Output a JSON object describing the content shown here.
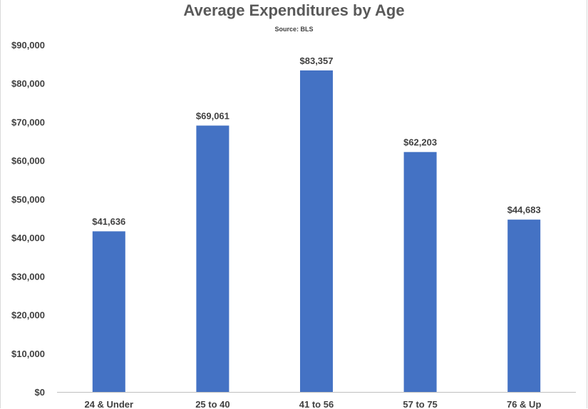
{
  "chart_data": {
    "type": "bar",
    "title": "Average Expenditures by Age",
    "subtitle": "Source: BLS",
    "categories": [
      "24 & Under",
      "25 to 40",
      "41 to 56",
      "57 to 75",
      "76 & Up"
    ],
    "values": [
      41636,
      69061,
      83357,
      62203,
      44683
    ],
    "data_labels": [
      "$41,636",
      "$69,061",
      "$83,357",
      "$62,203",
      "$44,683"
    ],
    "yticks": [
      0,
      10000,
      20000,
      30000,
      40000,
      50000,
      60000,
      70000,
      80000,
      90000
    ],
    "ytick_labels": [
      "$0",
      "$10,000",
      "$20,000",
      "$30,000",
      "$40,000",
      "$50,000",
      "$60,000",
      "$70,000",
      "$80,000",
      "$90,000"
    ],
    "ylim": [
      0,
      90000
    ],
    "bar_color": "#4472C4",
    "grid": false,
    "legend": "none"
  }
}
